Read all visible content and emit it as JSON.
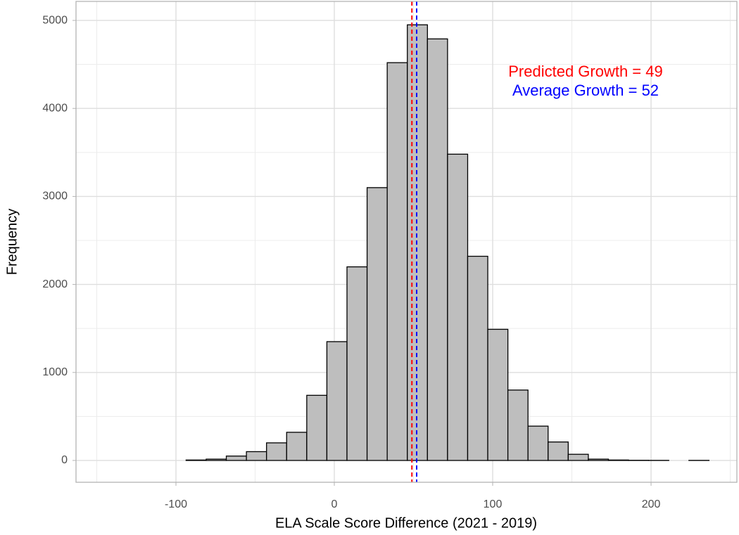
{
  "chart_data": {
    "type": "histogram",
    "x_label": "ELA Scale Score Difference (2021 - 2019)",
    "y_label": "Frequency",
    "bins": [
      -144.4,
      -131.7,
      -119.0,
      -106.3,
      -93.6,
      -80.9,
      -68.2,
      -55.5,
      -42.8,
      -30.1,
      -17.4,
      -4.7,
      8.0,
      20.7,
      33.4,
      46.1,
      58.8,
      71.5,
      84.2,
      96.9,
      109.6,
      122.3,
      135.0,
      147.7,
      160.4,
      173.1,
      185.8,
      198.5,
      211.2,
      223.9,
      236.6
    ],
    "values": [
      0,
      0,
      0,
      0,
      5,
      15,
      50,
      100,
      200,
      320,
      740,
      1350,
      2200,
      3100,
      4520,
      4950,
      4790,
      3480,
      2320,
      1490,
      800,
      390,
      210,
      70,
      15,
      5,
      2,
      1,
      0,
      1
    ],
    "color": "#bebebe",
    "edge_color": "#000000",
    "xlim": [
      -163.1,
      254.2
    ],
    "ylim": [
      -248,
      5216
    ],
    "xticks": [
      -100,
      0,
      100,
      200
    ],
    "yticks": [
      0,
      1000,
      2000,
      3000,
      4000,
      5000
    ],
    "minor_xticks": [
      -150,
      -50,
      50,
      150,
      250
    ],
    "minor_yticks": [
      500,
      1500,
      2500,
      3500,
      4500
    ],
    "grid": true,
    "vlines": [
      {
        "value": 49,
        "color": "#ff0000",
        "label": "Predicted Growth = 49"
      },
      {
        "value": 52,
        "color": "#0000ff",
        "label": "Average Growth = 52"
      }
    ]
  }
}
